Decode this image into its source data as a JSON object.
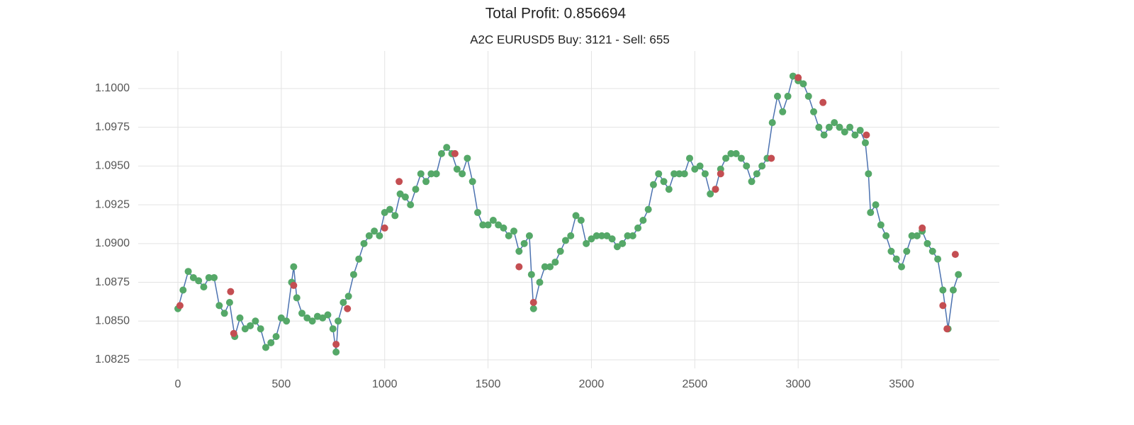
{
  "chart_data": {
    "type": "line",
    "title": "Total Profit: 0.856694",
    "subtitle": "A2C EURUSD5 Buy: 3121 - Sell: 655",
    "x": [
      0,
      25,
      50,
      75,
      100,
      125,
      150,
      175,
      200,
      225,
      250,
      275,
      300,
      325,
      350,
      375,
      400,
      425,
      450,
      475,
      500,
      525,
      550,
      560,
      575,
      600,
      625,
      650,
      675,
      700,
      725,
      750,
      765,
      775,
      800,
      825,
      850,
      875,
      900,
      925,
      950,
      975,
      1000,
      1025,
      1050,
      1075,
      1100,
      1125,
      1150,
      1175,
      1200,
      1225,
      1250,
      1275,
      1300,
      1325,
      1350,
      1375,
      1400,
      1425,
      1450,
      1475,
      1500,
      1525,
      1550,
      1575,
      1600,
      1625,
      1650,
      1675,
      1700,
      1710,
      1720,
      1750,
      1775,
      1800,
      1825,
      1850,
      1875,
      1900,
      1925,
      1950,
      1975,
      2000,
      2025,
      2050,
      2075,
      2100,
      2125,
      2150,
      2175,
      2200,
      2225,
      2250,
      2275,
      2300,
      2325,
      2350,
      2375,
      2400,
      2425,
      2450,
      2475,
      2500,
      2525,
      2550,
      2575,
      2600,
      2625,
      2650,
      2675,
      2700,
      2725,
      2750,
      2775,
      2800,
      2825,
      2850,
      2875,
      2900,
      2925,
      2950,
      2975,
      3000,
      3025,
      3050,
      3075,
      3100,
      3125,
      3150,
      3175,
      3200,
      3225,
      3250,
      3275,
      3300,
      3325,
      3340,
      3350,
      3375,
      3400,
      3425,
      3450,
      3475,
      3500,
      3525,
      3550,
      3575,
      3600,
      3625,
      3650,
      3675,
      3700,
      3725,
      3750,
      3775
    ],
    "series": [
      {
        "color": "#4c72b0",
        "marker_color": "#55a868",
        "values": [
          1.0858,
          1.087,
          1.0882,
          1.0878,
          1.0876,
          1.0872,
          1.0878,
          1.0878,
          1.086,
          1.0855,
          1.0862,
          1.084,
          1.0852,
          1.0845,
          1.0847,
          1.085,
          1.0845,
          1.0833,
          1.0836,
          1.084,
          1.0852,
          1.085,
          1.0875,
          1.0885,
          1.0865,
          1.0855,
          1.0852,
          1.085,
          1.0853,
          1.0852,
          1.0854,
          1.0845,
          1.083,
          1.085,
          1.0862,
          1.0866,
          1.088,
          1.089,
          1.09,
          1.0905,
          1.0908,
          1.0905,
          1.092,
          1.0922,
          1.0918,
          1.0932,
          1.093,
          1.0925,
          1.0935,
          1.0945,
          1.094,
          1.0945,
          1.0945,
          1.0958,
          1.0962,
          1.0958,
          1.0948,
          1.0945,
          1.0955,
          1.094,
          1.092,
          1.0912,
          1.0912,
          1.0915,
          1.0912,
          1.091,
          1.0905,
          1.0908,
          1.0895,
          1.09,
          1.0905,
          1.088,
          1.0858,
          1.0875,
          1.0885,
          1.0885,
          1.0888,
          1.0895,
          1.0902,
          1.0905,
          1.0918,
          1.0915,
          1.09,
          1.0903,
          1.0905,
          1.0905,
          1.0905,
          1.0903,
          1.0898,
          1.09,
          1.0905,
          1.0905,
          1.091,
          1.0915,
          1.0922,
          1.0938,
          1.0945,
          1.094,
          1.0935,
          1.0945,
          1.0945,
          1.0945,
          1.0955,
          1.0948,
          1.095,
          1.0945,
          1.0932,
          1.0935,
          1.0948,
          1.0955,
          1.0958,
          1.0958,
          1.0955,
          1.095,
          1.094,
          1.0945,
          1.095,
          1.0955,
          1.0978,
          1.0995,
          1.0985,
          1.0995,
          1.1008,
          1.1005,
          1.1003,
          1.0995,
          1.0985,
          1.0975,
          1.097,
          1.0975,
          1.0978,
          1.0975,
          1.0972,
          1.0975,
          1.097,
          1.0973,
          1.0965,
          1.0945,
          1.092,
          1.0925,
          1.0912,
          1.0905,
          1.0895,
          1.089,
          1.0885,
          1.0895,
          1.0905,
          1.0905,
          1.0908,
          1.09,
          1.0895,
          1.089,
          1.087,
          1.0845,
          1.087,
          1.088
        ]
      },
      {
        "type": "scatter",
        "color": "#c44e52",
        "x": [
          10,
          255,
          270,
          560,
          765,
          820,
          1000,
          1070,
          1340,
          1650,
          1720,
          2600,
          2625,
          2870,
          3000,
          3120,
          3330,
          3600,
          3700,
          3720,
          3760
        ],
        "values": [
          1.086,
          1.0869,
          1.0842,
          1.0873,
          1.0835,
          1.0858,
          1.091,
          1.094,
          1.0958,
          1.0885,
          1.0862,
          1.0935,
          1.0945,
          1.0955,
          1.1007,
          1.0991,
          1.097,
          1.091,
          1.086,
          1.0845,
          1.0893
        ]
      }
    ],
    "xlim": [
      -192,
      3973
    ],
    "xticks": [
      0,
      500,
      1000,
      1500,
      2000,
      2500,
      3000,
      3500
    ],
    "ylim": [
      1.08195,
      1.10242
    ],
    "yticks": [
      1.0825,
      {
        "value": 1.085,
        "label": "1.0850"
      },
      1.0875,
      {
        "value": 1.09,
        "label": "1.0900"
      },
      1.0925,
      {
        "value": 1.095,
        "label": "1.0950"
      },
      1.0975,
      {
        "value": 1.1,
        "label": "1.1000"
      }
    ],
    "grid": true
  }
}
